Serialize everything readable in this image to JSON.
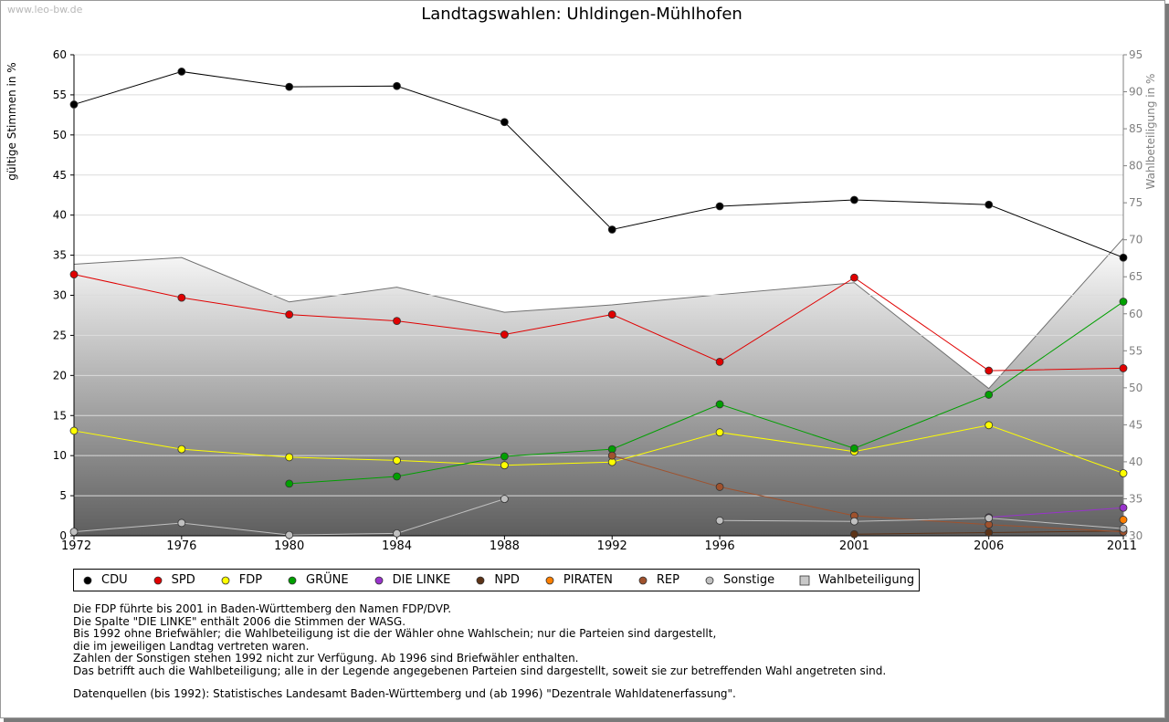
{
  "watermark": "www.leo-bw.de",
  "chart_data": {
    "type": "line",
    "title": "Landtagswahlen: Uhldingen-Mühlhofen",
    "ylabel": "gültige Stimmen in %",
    "y2label": "Wahlbeteiligung in %",
    "xlabel": "",
    "x": [
      1972,
      1976,
      1980,
      1984,
      1988,
      1992,
      1996,
      2001,
      2006,
      2011
    ],
    "ylim": [
      0,
      60
    ],
    "y2lim": [
      30,
      95
    ],
    "yticks": [
      0,
      5,
      10,
      15,
      20,
      25,
      30,
      35,
      40,
      45,
      50,
      55,
      60
    ],
    "y2ticks": [
      30,
      35,
      40,
      45,
      50,
      55,
      60,
      65,
      70,
      75,
      80,
      85,
      90,
      95
    ],
    "grid": true,
    "legend_position": "bottom",
    "series": [
      {
        "name": "CDU",
        "color": "#000000",
        "values": [
          53.8,
          57.9,
          56.0,
          56.1,
          51.6,
          38.2,
          41.1,
          41.9,
          41.3,
          34.7
        ]
      },
      {
        "name": "SPD",
        "color": "#e00000",
        "values": [
          32.6,
          29.7,
          27.6,
          26.8,
          25.1,
          27.6,
          21.7,
          32.2,
          20.6,
          20.9
        ]
      },
      {
        "name": "FDP",
        "color": "#ffff00",
        "values": [
          13.1,
          10.8,
          9.8,
          9.4,
          8.8,
          9.2,
          12.9,
          10.5,
          13.8,
          7.8
        ]
      },
      {
        "name": "GRÜNE",
        "color": "#00a000",
        "values": [
          null,
          null,
          6.5,
          7.4,
          9.9,
          10.8,
          16.4,
          10.9,
          17.6,
          29.2
        ]
      },
      {
        "name": "DIE LINKE",
        "color": "#9933cc",
        "values": [
          null,
          null,
          null,
          null,
          null,
          null,
          null,
          null,
          2.3,
          3.5
        ]
      },
      {
        "name": "NPD",
        "color": "#5c3317",
        "values": [
          null,
          null,
          null,
          null,
          null,
          null,
          null,
          0.2,
          0.4,
          0.6
        ]
      },
      {
        "name": "PIRATEN",
        "color": "#ff7f00",
        "values": [
          null,
          null,
          null,
          null,
          null,
          null,
          null,
          null,
          null,
          2.0
        ]
      },
      {
        "name": "REP",
        "color": "#a0522d",
        "values": [
          null,
          null,
          null,
          null,
          null,
          10.0,
          6.1,
          2.5,
          1.4,
          0.5
        ]
      },
      {
        "name": "Sonstige",
        "color": "#c0c0c0",
        "values": [
          0.5,
          1.6,
          0.1,
          0.3,
          4.6,
          null,
          1.9,
          1.8,
          2.2,
          0.9
        ]
      }
    ],
    "turnout": {
      "name": "Wahlbeteiligung",
      "color": "#c8c8c8",
      "values": [
        66.7,
        67.6,
        61.6,
        63.6,
        60.2,
        61.2,
        62.6,
        64.2,
        49.9,
        70.2
      ]
    }
  },
  "notes": [
    "Die FDP führte bis 2001 in Baden-Württemberg den Namen FDP/DVP.",
    "Die Spalte \"DIE LINKE\" enthält 2006 die Stimmen der WASG.",
    "Bis 1992 ohne Briefwähler; die Wahlbeteiligung ist die der Wähler ohne Wahlschein; nur die Parteien sind dargestellt,",
    "die im jeweiligen Landtag vertreten waren.",
    "Zahlen der Sonstigen stehen 1992 nicht zur Verfügung. Ab 1996 sind Briefwähler enthalten.",
    "Das betrifft auch die Wahlbeteiligung; alle in der Legende angegebenen Parteien sind dargestellt, soweit sie zur betreffenden Wahl angetreten sind."
  ],
  "source": "Datenquellen (bis 1992): Statistisches Landesamt Baden-Württemberg und (ab 1996) \"Dezentrale Wahldatenerfassung\"."
}
